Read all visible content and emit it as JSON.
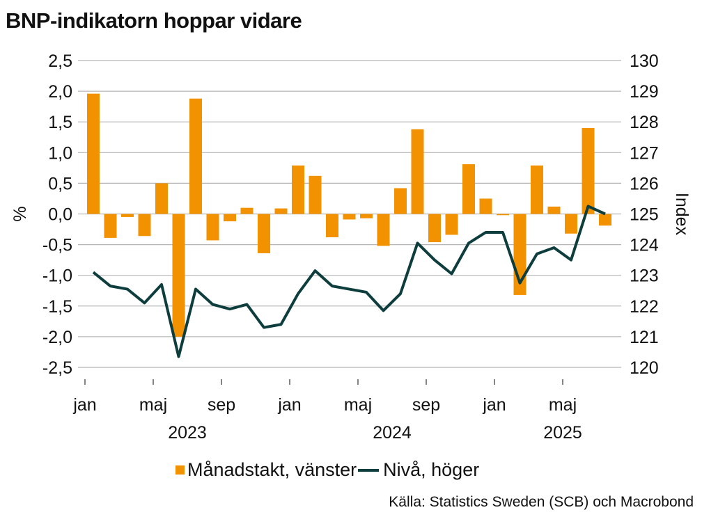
{
  "title": "BNP-indikatorn hoppar vidare",
  "source": "Källa: Statistics Sweden (SCB) och Macrobond",
  "colors": {
    "bar": "#f39200",
    "line": "#0d3d3d",
    "grid": "#b5b5b5"
  },
  "chart_data": {
    "type": "bar+line",
    "title": "BNP-indikatorn hoppar vidare",
    "left_axis": {
      "label": "%",
      "range": [
        -2.5,
        2.5
      ],
      "ticks": [
        2.5,
        2.0,
        1.5,
        1.0,
        0.5,
        0.0,
        -0.5,
        -1.0,
        -1.5,
        -2.0,
        -2.5
      ],
      "tick_labels": [
        "2,5",
        "2,0",
        "1,5",
        "1,0",
        "0,5",
        "0,0",
        "-0,5",
        "-1,0",
        "-1,5",
        "-2,0",
        "-2,5"
      ]
    },
    "right_axis": {
      "label": "Index",
      "range": [
        120,
        130
      ],
      "ticks": [
        130,
        129,
        128,
        127,
        126,
        125,
        124,
        123,
        122,
        121,
        120
      ],
      "tick_labels": [
        "130",
        "129",
        "128",
        "127",
        "126",
        "125",
        "124",
        "123",
        "122",
        "121",
        "120"
      ]
    },
    "x_month_labels": [
      {
        "label": "jan",
        "index": 0
      },
      {
        "label": "maj",
        "index": 4
      },
      {
        "label": "sep",
        "index": 8
      },
      {
        "label": "jan",
        "index": 12
      },
      {
        "label": "maj",
        "index": 16
      },
      {
        "label": "sep",
        "index": 20
      },
      {
        "label": "jan",
        "index": 24
      },
      {
        "label": "maj",
        "index": 28
      }
    ],
    "x_year_labels": [
      {
        "label": "2023",
        "index": 6
      },
      {
        "label": "2024",
        "index": 18
      },
      {
        "label": "2025",
        "index": 28
      }
    ],
    "months": [
      "2023-01",
      "2023-02",
      "2023-03",
      "2023-04",
      "2023-05",
      "2023-06",
      "2023-07",
      "2023-08",
      "2023-09",
      "2023-10",
      "2023-11",
      "2023-12",
      "2024-01",
      "2024-02",
      "2024-03",
      "2024-04",
      "2024-05",
      "2024-06",
      "2024-07",
      "2024-08",
      "2024-09",
      "2024-10",
      "2024-11",
      "2024-12",
      "2025-01",
      "2025-02",
      "2025-03",
      "2025-04",
      "2025-05",
      "2025-06",
      "2025-07"
    ],
    "series": [
      {
        "name": "Månadstakt, vänster",
        "axis": "left",
        "type": "bar",
        "values": [
          1.96,
          -0.39,
          -0.05,
          -0.36,
          0.5,
          -2.0,
          1.88,
          -0.43,
          -0.12,
          0.1,
          -0.64,
          0.09,
          0.79,
          0.62,
          -0.38,
          -0.09,
          -0.07,
          -0.52,
          0.42,
          1.38,
          -0.46,
          -0.34,
          0.81,
          0.25,
          -0.02,
          -1.32,
          0.79,
          0.12,
          -0.32,
          1.4,
          -0.19
        ]
      },
      {
        "name": "Nivå, höger",
        "axis": "right",
        "type": "line",
        "values": [
          123.1,
          122.65,
          122.55,
          122.1,
          122.7,
          120.35,
          122.55,
          122.05,
          121.9,
          122.05,
          121.3,
          121.4,
          122.4,
          123.15,
          122.65,
          122.55,
          122.45,
          121.85,
          122.4,
          124.05,
          123.5,
          123.05,
          124.05,
          124.4,
          124.4,
          122.75,
          123.7,
          123.9,
          123.5,
          125.25,
          125.0
        ]
      }
    ],
    "legend": [
      "Månadstakt, vänster",
      "Nivå, höger"
    ],
    "legend_position": "bottom-center",
    "grid": true
  }
}
